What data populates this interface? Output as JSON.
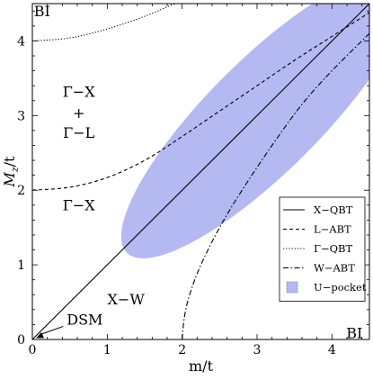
{
  "chart_data": {
    "type": "line",
    "xlabel": "m/t",
    "ylabel": "M",
    "ylabel_subscript": "z",
    "ylabel_suffix": "/t",
    "xlim": [
      0,
      4.5
    ],
    "ylim": [
      0,
      4.5
    ],
    "x_ticks": [
      {
        "value": 0,
        "label": "0"
      },
      {
        "value": 1,
        "label": "1"
      },
      {
        "value": 2,
        "label": "2"
      },
      {
        "value": 3,
        "label": "3"
      },
      {
        "value": 4,
        "label": "4"
      }
    ],
    "y_ticks": [
      {
        "value": 0,
        "label": "0"
      },
      {
        "value": 1,
        "label": "1"
      },
      {
        "value": 2,
        "label": "2"
      },
      {
        "value": 3,
        "label": "3"
      },
      {
        "value": 4,
        "label": "4"
      }
    ],
    "legend": {
      "position": "bottom-right",
      "entries": [
        {
          "name": "X−QBT",
          "style": "solid"
        },
        {
          "name": "L−ABT",
          "style": "dashed"
        },
        {
          "name": "Γ−QBT",
          "style": "dotted"
        },
        {
          "name": "W−ABT",
          "style": "dashdot"
        },
        {
          "name": "U−pocket",
          "style": "fill"
        }
      ]
    },
    "series": [
      {
        "name": "X−QBT",
        "style": "solid",
        "points": [
          [
            0,
            0
          ],
          [
            4.5,
            4.5
          ]
        ]
      },
      {
        "name": "L−ABT",
        "style": "dashed",
        "points": [
          [
            0,
            2.0
          ],
          [
            0.5,
            2.04
          ],
          [
            1.0,
            2.17
          ],
          [
            1.5,
            2.4
          ],
          [
            2.0,
            2.72
          ],
          [
            2.5,
            3.06
          ],
          [
            3.0,
            3.4
          ],
          [
            3.5,
            3.74
          ],
          [
            4.0,
            4.06
          ],
          [
            4.5,
            4.38
          ]
        ]
      },
      {
        "name": "Γ−QBT",
        "style": "dotted",
        "points": [
          [
            0,
            4.0
          ],
          [
            0.5,
            4.04
          ],
          [
            1.0,
            4.16
          ],
          [
            1.5,
            4.33
          ],
          [
            1.9,
            4.5
          ]
        ]
      },
      {
        "name": "W−ABT",
        "style": "dashdot",
        "points": [
          [
            2.0,
            0.0
          ],
          [
            2.03,
            0.3
          ],
          [
            2.1,
            0.6
          ],
          [
            2.25,
            1.0
          ],
          [
            2.5,
            1.5
          ],
          [
            2.8,
            2.0
          ],
          [
            3.2,
            2.6
          ],
          [
            3.6,
            3.15
          ],
          [
            4.0,
            3.6
          ],
          [
            4.5,
            4.1
          ]
        ]
      }
    ],
    "region": {
      "name": "U−pocket",
      "color": "#b4b9f2",
      "shape": "ellipse",
      "center": [
        3.1,
        3.0
      ],
      "semi_axes": [
        2.6,
        0.75
      ],
      "angle_deg": 45
    },
    "annotations": [
      {
        "text": "BI",
        "at": [
          0.13,
          4.33
        ]
      },
      {
        "text": "Γ−X",
        "at": [
          0.62,
          3.25
        ]
      },
      {
        "text": "+",
        "at": [
          0.62,
          2.97
        ]
      },
      {
        "text": "Γ−L",
        "at": [
          0.62,
          2.7
        ]
      },
      {
        "text": "Γ−X",
        "at": [
          0.62,
          1.73
        ]
      },
      {
        "text": "X−W",
        "at": [
          1.25,
          0.47
        ]
      },
      {
        "text": "DSM",
        "at": [
          0.7,
          0.2
        ],
        "arrow_to": [
          0.05,
          0.02
        ]
      },
      {
        "text": "BI",
        "at": [
          4.3,
          0.02
        ]
      }
    ],
    "grid": false,
    "colors": {
      "axis": "#000000",
      "fill": "#b4b9f2",
      "line": "#000000"
    }
  }
}
